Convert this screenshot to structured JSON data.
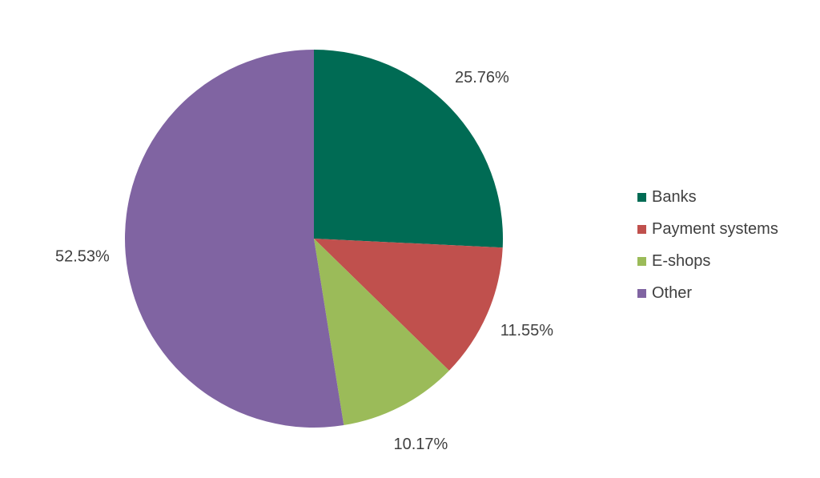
{
  "chart_data": {
    "type": "pie",
    "categories": [
      "Banks",
      "Payment systems",
      "E-shops",
      "Other"
    ],
    "values": [
      25.76,
      11.55,
      10.17,
      52.53
    ],
    "labels": [
      "25.76%",
      "11.55%",
      "10.17%",
      "52.53%"
    ],
    "colors": [
      "#006B54",
      "#C0504D",
      "#9BBB59",
      "#8064A2"
    ],
    "start_angle": "12 o'clock",
    "direction": "clockwise",
    "legend": {
      "placement": "right",
      "items": [
        {
          "label": "Banks",
          "color": "#006B54"
        },
        {
          "label": "Payment systems",
          "color": "#C0504D"
        },
        {
          "label": "E-shops",
          "color": "#9BBB59"
        },
        {
          "label": "Other",
          "color": "#8064A2"
        }
      ]
    }
  }
}
